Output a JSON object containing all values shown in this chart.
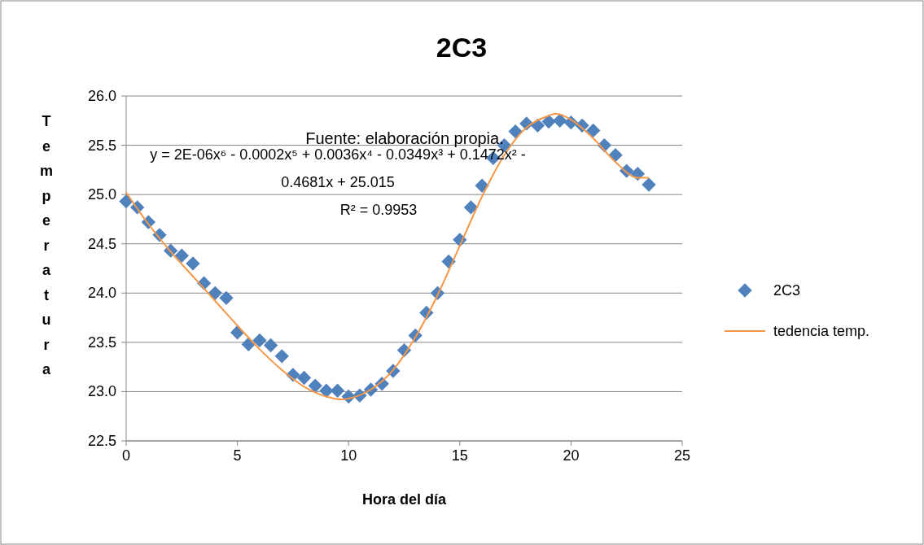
{
  "chart_data": {
    "type": "scatter",
    "title": "2C3",
    "xlabel": "Hora del día",
    "ylabel": "Temperatura",
    "xlim": [
      0,
      25
    ],
    "xticks": [
      0,
      5,
      10,
      15,
      20,
      25
    ],
    "ylim": [
      22.5,
      26.0
    ],
    "yticks": [
      {
        "value": 22.5,
        "label": "22.5"
      },
      {
        "value": 23.0,
        "label": "23.0"
      },
      {
        "value": 23.5,
        "label": "23.5"
      },
      {
        "value": 24.0,
        "label": "24.0"
      },
      {
        "value": 24.5,
        "label": "24.5"
      },
      {
        "value": 25.0,
        "label": "25.0"
      },
      {
        "value": 25.5,
        "label": "25.5"
      },
      {
        "value": 26.0,
        "label": "26.0"
      }
    ],
    "grid": "y",
    "legend": "right",
    "annotations": [
      "Fuente: elaboración propia.",
      "y = 2E-06x⁶ - 0.0002x⁵ + 0.0036x⁴ - 0.0349x³ + 0.1472x² - 0.4681x + 25.015",
      "R² = 0.9953"
    ],
    "series": [
      {
        "name": "2C3",
        "marker": "diamond",
        "color": "#4f81bd",
        "x": [
          0,
          0.5,
          1,
          1.5,
          2,
          2.5,
          3,
          3.5,
          4,
          4.5,
          5,
          5.5,
          6,
          6.5,
          7,
          7.5,
          8,
          8.5,
          9,
          9.5,
          10,
          10.5,
          11,
          11.5,
          12,
          12.5,
          13,
          13.5,
          14,
          14.5,
          15,
          15.5,
          16,
          16.5,
          17,
          17.5,
          18,
          18.5,
          19,
          19.5,
          20,
          20.5,
          21,
          21.5,
          22,
          22.5,
          23,
          23.5
        ],
        "values": [
          24.93,
          24.87,
          24.72,
          24.59,
          24.43,
          24.38,
          24.3,
          24.1,
          24.0,
          23.95,
          23.6,
          23.48,
          23.52,
          23.47,
          23.36,
          23.17,
          23.14,
          23.06,
          23.01,
          23.01,
          22.95,
          22.96,
          23.02,
          23.08,
          23.21,
          23.42,
          23.57,
          23.8,
          24.0,
          24.32,
          24.54,
          24.87,
          25.09,
          25.37,
          25.5,
          25.64,
          25.72,
          25.7,
          25.74,
          25.75,
          25.73,
          25.7,
          25.65,
          25.5,
          25.4,
          25.24,
          25.21,
          25.1
        ]
      },
      {
        "name": "tedencia temp.",
        "type": "line",
        "marker": "none",
        "line_style": "solid",
        "color": "#f79646",
        "x": [
          0,
          1,
          2,
          3,
          4,
          5,
          6,
          7,
          8,
          9,
          9.7,
          10,
          11,
          12,
          13,
          14,
          15,
          16,
          17,
          18,
          19,
          19.3,
          20,
          21,
          22,
          23,
          23.5
        ],
        "values": [
          25.02,
          24.7,
          24.42,
          24.17,
          23.92,
          23.67,
          23.43,
          23.22,
          23.05,
          22.95,
          22.92,
          22.93,
          23.02,
          23.22,
          23.55,
          23.98,
          24.48,
          24.98,
          25.4,
          25.68,
          25.8,
          25.82,
          25.76,
          25.57,
          25.33,
          25.17,
          25.17
        ]
      }
    ]
  }
}
